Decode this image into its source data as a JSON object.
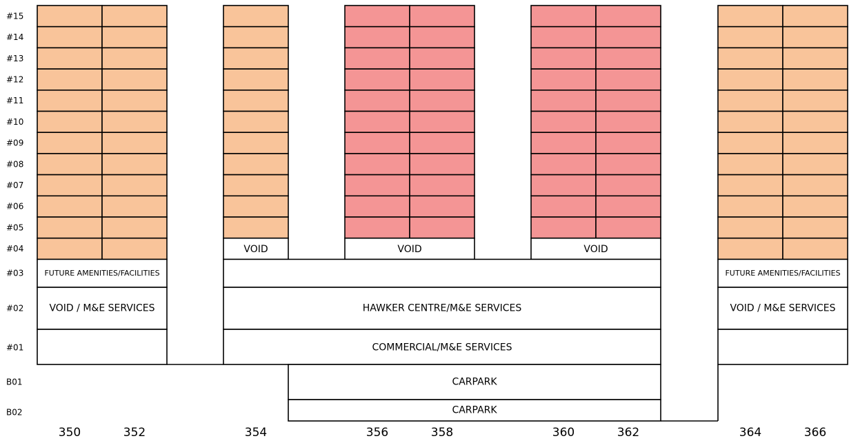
{
  "floors": [
    "#15",
    "#14",
    "#13",
    "#12",
    "#11",
    "#10",
    "#09",
    "#08",
    "#07",
    "#06",
    "#05",
    "#04",
    "#03",
    "#02",
    "#01",
    "B01",
    "B02"
  ],
  "blocks": [
    "350",
    "352",
    "354",
    "356",
    "358",
    "360",
    "362",
    "364",
    "366"
  ],
  "colors": {
    "residential_orange": "#f9c49a",
    "residential_pink": "#f49595",
    "outline": "#000000",
    "background": "#ffffff"
  },
  "labels": {
    "void": "VOID",
    "future_amenities": "FUTURE AMENITIES/FACILITIES",
    "void_me": "VOID / M&E SERVICES",
    "hawker": "HAWKER CENTRE/M&E SERVICES",
    "commercial": "COMMERCIAL/M&E SERVICES",
    "carpark": "CARPARK"
  }
}
